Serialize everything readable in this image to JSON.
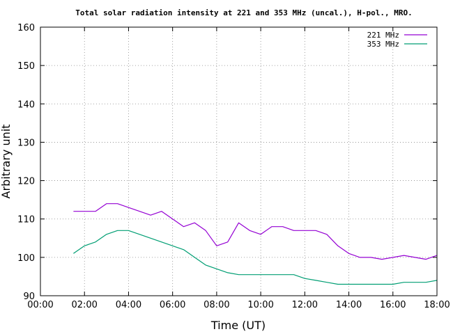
{
  "chart_data": {
    "type": "line",
    "title": "Total solar radiation intensity at 221 and 353 MHz (uncal.), H-pol., MRO.",
    "xlabel": "Time (UT)",
    "ylabel": "Arbitrary unit",
    "xlim": [
      0,
      18
    ],
    "ylim": [
      90,
      160
    ],
    "x_ticks": [
      0,
      2,
      4,
      6,
      8,
      10,
      12,
      14,
      16,
      18
    ],
    "x_tick_labels": [
      "00:00",
      "02:00",
      "04:00",
      "06:00",
      "08:00",
      "10:00",
      "12:00",
      "14:00",
      "16:00",
      "18:00"
    ],
    "y_ticks": [
      90,
      100,
      110,
      120,
      130,
      140,
      150,
      160
    ],
    "y_tick_labels": [
      "90",
      "100",
      "110",
      "120",
      "130",
      "140",
      "150",
      "160"
    ],
    "grid": true,
    "legend_position": "top-right",
    "series": [
      {
        "name": "221 MHz",
        "color": "#9400d3",
        "x": [
          1.5,
          2.0,
          2.5,
          3.0,
          3.5,
          4.0,
          4.5,
          5.0,
          5.5,
          6.0,
          6.5,
          7.0,
          7.5,
          8.0,
          8.5,
          9.0,
          9.5,
          10.0,
          10.5,
          11.0,
          11.5,
          12.0,
          12.5,
          13.0,
          13.5,
          14.0,
          14.5,
          15.0,
          15.5,
          16.0,
          16.5,
          17.0,
          17.5,
          18.0
        ],
        "values": [
          112,
          112,
          112,
          114,
          114,
          113,
          112,
          111,
          112,
          110,
          108,
          109,
          107,
          103,
          104,
          109,
          107,
          106,
          108,
          108,
          107,
          107,
          107,
          106,
          103,
          101,
          100,
          100,
          99.5,
          100,
          100.5,
          100,
          99.5,
          100.5
        ]
      },
      {
        "name": "353 MHz",
        "color": "#009e73",
        "x": [
          1.5,
          2.0,
          2.5,
          3.0,
          3.5,
          4.0,
          4.5,
          5.0,
          5.5,
          6.0,
          6.5,
          7.0,
          7.5,
          8.0,
          8.5,
          9.0,
          9.5,
          10.0,
          10.5,
          11.0,
          11.5,
          12.0,
          12.5,
          13.0,
          13.5,
          14.0,
          14.5,
          15.0,
          15.5,
          16.0,
          16.5,
          17.0,
          17.5,
          18.0
        ],
        "values": [
          101,
          103,
          104,
          106,
          107,
          107,
          106,
          105,
          104,
          103,
          102,
          100,
          98,
          97,
          96,
          95.5,
          95.5,
          95.5,
          95.5,
          95.5,
          95.5,
          94.5,
          94,
          93.5,
          93,
          93,
          93,
          93,
          93,
          93,
          93.5,
          93.5,
          93.5,
          94
        ]
      }
    ]
  }
}
